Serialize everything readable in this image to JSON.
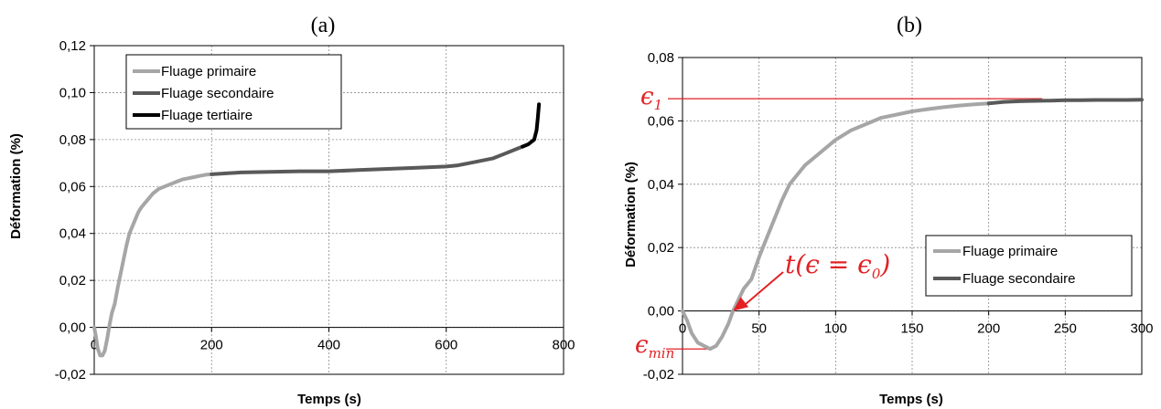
{
  "colors": {
    "primaire": "#a6a6a6",
    "secondaire": "#595959",
    "tertiaire": "#000000",
    "annotation": "#e32124",
    "grid": "#8c8c8c"
  },
  "chart_data": [
    {
      "type": "line",
      "panel_label": "(a)",
      "xlabel": "Temps (s)",
      "ylabel": "Déformation (%)",
      "xlim": [
        0,
        800
      ],
      "ylim": [
        -0.02,
        0.12
      ],
      "x_ticks": [
        "0",
        "200",
        "400",
        "600",
        "800"
      ],
      "y_ticks": [
        "-0,02",
        "0,00",
        "0,02",
        "0,04",
        "0,06",
        "0,08",
        "0,10",
        "0,12"
      ],
      "grid": true,
      "legend_position": "top-left",
      "series": [
        {
          "name": "Fluage primaire",
          "color": "#a6a6a6",
          "x": [
            0,
            3,
            6,
            10,
            14,
            18,
            22,
            26,
            30,
            35,
            40,
            45,
            50,
            55,
            60,
            65,
            70,
            75,
            80,
            90,
            100,
            110,
            120,
            130,
            140,
            150,
            160,
            170,
            180,
            190,
            200
          ],
          "y": [
            0.0,
            -0.004,
            -0.009,
            -0.012,
            -0.012,
            -0.01,
            -0.005,
            0.001,
            0.006,
            0.01,
            0.017,
            0.023,
            0.029,
            0.035,
            0.04,
            0.043,
            0.046,
            0.049,
            0.051,
            0.054,
            0.057,
            0.059,
            0.06,
            0.061,
            0.062,
            0.063,
            0.0635,
            0.064,
            0.0645,
            0.065,
            0.0652
          ]
        },
        {
          "name": "Fluage secondaire",
          "color": "#595959",
          "x": [
            200,
            250,
            300,
            350,
            400,
            450,
            500,
            550,
            600,
            620,
            650,
            680,
            700,
            720,
            730
          ],
          "y": [
            0.0652,
            0.066,
            0.0662,
            0.0665,
            0.0665,
            0.067,
            0.0675,
            0.068,
            0.0685,
            0.069,
            0.0705,
            0.072,
            0.074,
            0.076,
            0.077
          ]
        },
        {
          "name": "Fluage tertiaire",
          "color": "#000000",
          "x": [
            730,
            740,
            745,
            750,
            752,
            754,
            756,
            758
          ],
          "y": [
            0.077,
            0.078,
            0.079,
            0.08,
            0.082,
            0.084,
            0.089,
            0.095
          ]
        }
      ]
    },
    {
      "type": "line",
      "panel_label": "(b)",
      "xlabel": "Temps (s)",
      "ylabel": "Déformation (%)",
      "xlim": [
        0,
        300
      ],
      "ylim": [
        -0.02,
        0.08
      ],
      "x_ticks": [
        "0",
        "50",
        "100",
        "150",
        "200",
        "250",
        "300"
      ],
      "y_ticks": [
        "-0,02",
        "0,00",
        "0,02",
        "0,04",
        "0,06",
        "0,08"
      ],
      "grid": true,
      "legend_position": "bottom-right",
      "series": [
        {
          "name": "Fluage primaire",
          "color": "#a6a6a6",
          "x": [
            0,
            3,
            6,
            10,
            14,
            18,
            22,
            26,
            30,
            33,
            36,
            40,
            45,
            50,
            55,
            60,
            65,
            70,
            75,
            80,
            90,
            100,
            110,
            120,
            130,
            140,
            150,
            160,
            170,
            180,
            190,
            200
          ],
          "y": [
            0.0,
            -0.003,
            -0.007,
            -0.01,
            -0.011,
            -0.012,
            -0.011,
            -0.008,
            -0.004,
            0.0,
            0.003,
            0.007,
            0.01,
            0.017,
            0.023,
            0.029,
            0.035,
            0.04,
            0.043,
            0.046,
            0.05,
            0.054,
            0.057,
            0.059,
            0.061,
            0.062,
            0.063,
            0.0637,
            0.0643,
            0.0648,
            0.0652,
            0.0655
          ]
        },
        {
          "name": "Fluage secondaire",
          "color": "#595959",
          "x": [
            200,
            210,
            220,
            230,
            240,
            250,
            260,
            270,
            280,
            290,
            300
          ],
          "y": [
            0.0655,
            0.066,
            0.0662,
            0.0663,
            0.0664,
            0.0665,
            0.0665,
            0.0666,
            0.0666,
            0.0666,
            0.0667
          ]
        }
      ],
      "annotations": {
        "eps1": {
          "symbol": "ϵ",
          "sub": "1",
          "y": 0.067,
          "x_end": 235
        },
        "t_eps0": {
          "text": "t(ϵ = ϵ",
          "sub": "0",
          "close": ")",
          "x": 33,
          "y": 0.0
        },
        "eps_min": {
          "symbol": "ϵ",
          "sub": "min",
          "y": -0.012,
          "x": 18
        }
      }
    }
  ]
}
